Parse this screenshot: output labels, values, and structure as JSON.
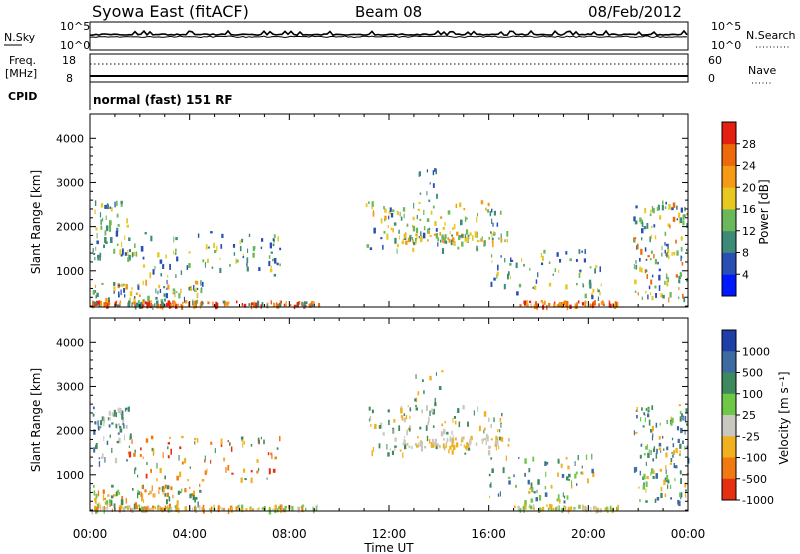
{
  "header": {
    "station": "Syowa East (fitACF)",
    "beam": "Beam 08",
    "date": "08/Feb/2012"
  },
  "strip_nsky": {
    "left_label": "N.Sky",
    "right_label": "N.Search",
    "left_ticks": [
      "10^5",
      "10^0"
    ],
    "right_ticks": [
      "10^5",
      "10^0"
    ]
  },
  "strip_freq": {
    "left_label_1": "Freq.",
    "left_label_2": "[MHz]",
    "right_label": "Nave",
    "left_ticks": [
      "18",
      "8"
    ],
    "right_ticks": [
      "60",
      "0"
    ]
  },
  "cpid": {
    "label": "CPID",
    "text": "normal (fast) 151 RF"
  },
  "chart_data": [
    {
      "type": "heatmap",
      "name": "power",
      "ylabel": "Slant Range [km]",
      "yticks": [
        "1000",
        "2000",
        "3000",
        "4000"
      ],
      "ylim": [
        180,
        4550
      ],
      "colorbar_label": "Power [dB]",
      "colorbar_ticks": [
        "4",
        "8",
        "12",
        "16",
        "20",
        "24",
        "28"
      ],
      "colors": [
        "#0018ff",
        "#2a4fb4",
        "#3d8a78",
        "#6ab85a",
        "#e6c81e",
        "#f49a14",
        "#ec6a0a",
        "#e42010"
      ]
    },
    {
      "type": "heatmap",
      "name": "velocity",
      "ylabel": "Slant Range [km]",
      "yticks": [
        "1000",
        "2000",
        "3000",
        "4000"
      ],
      "ylim": [
        180,
        4550
      ],
      "colorbar_label": "Velocity [m s⁻¹]",
      "colorbar_ticks": [
        "1000",
        "500",
        "100",
        "25",
        "-25",
        "-100",
        "-500",
        "-1000"
      ],
      "colors": [
        "#1f3fa8",
        "#3d6aa0",
        "#3e8a5e",
        "#6ec846",
        "#c8c8c0",
        "#f0b020",
        "#f07a10",
        "#e43010"
      ]
    }
  ],
  "time_axis": {
    "label": "Time UT",
    "ticks": [
      "00:00",
      "04:00",
      "08:00",
      "12:00",
      "16:00",
      "20:00",
      "00:00"
    ]
  }
}
